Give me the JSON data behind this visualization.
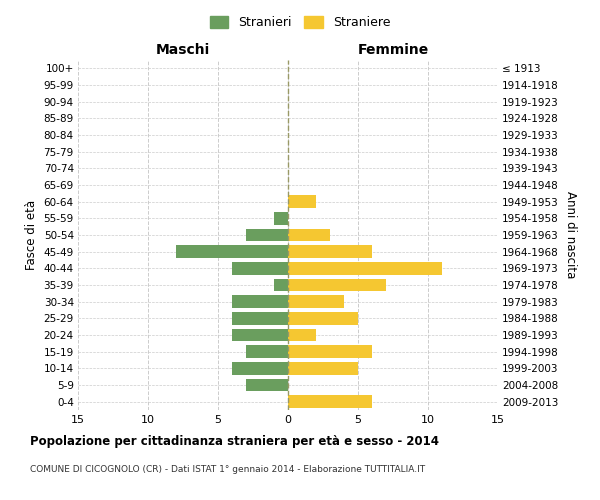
{
  "age_groups": [
    "0-4",
    "5-9",
    "10-14",
    "15-19",
    "20-24",
    "25-29",
    "30-34",
    "35-39",
    "40-44",
    "45-49",
    "50-54",
    "55-59",
    "60-64",
    "65-69",
    "70-74",
    "75-79",
    "80-84",
    "85-89",
    "90-94",
    "95-99",
    "100+"
  ],
  "birth_years": [
    "2009-2013",
    "2004-2008",
    "1999-2003",
    "1994-1998",
    "1989-1993",
    "1984-1988",
    "1979-1983",
    "1974-1978",
    "1969-1973",
    "1964-1968",
    "1959-1963",
    "1954-1958",
    "1949-1953",
    "1944-1948",
    "1939-1943",
    "1934-1938",
    "1929-1933",
    "1924-1928",
    "1919-1923",
    "1914-1918",
    "≤ 1913"
  ],
  "males": [
    0,
    3,
    4,
    3,
    4,
    4,
    4,
    1,
    4,
    8,
    3,
    1,
    0,
    0,
    0,
    0,
    0,
    0,
    0,
    0,
    0
  ],
  "females": [
    6,
    0,
    5,
    6,
    2,
    5,
    4,
    7,
    11,
    6,
    3,
    0,
    2,
    0,
    0,
    0,
    0,
    0,
    0,
    0,
    0
  ],
  "male_color": "#6a9e5e",
  "female_color": "#f5c731",
  "center_line_color": "#999966",
  "grid_color": "#cccccc",
  "background_color": "#ffffff",
  "xlim": 15,
  "title": "Popolazione per cittadinanza straniera per età e sesso - 2014",
  "subtitle": "COMUNE DI CICOGNOLO (CR) - Dati ISTAT 1° gennaio 2014 - Elaborazione TUTTITALIA.IT",
  "left_label": "Maschi",
  "right_label": "Femmine",
  "left_axis_label": "Fasce di età",
  "right_axis_label": "Anni di nascita",
  "legend_male": "Stranieri",
  "legend_female": "Straniere",
  "bar_height": 0.75
}
